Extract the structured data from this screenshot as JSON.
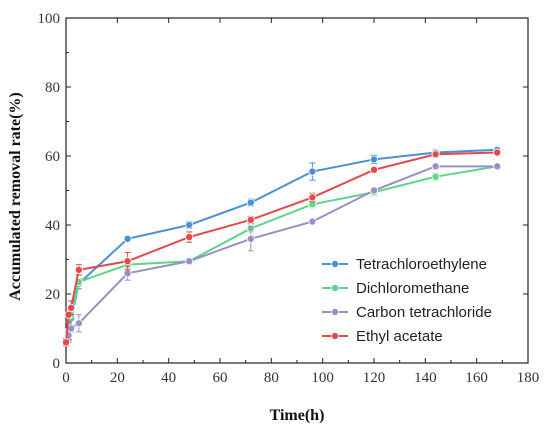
{
  "chart_data": {
    "type": "line",
    "xlabel": "Time(h)",
    "ylabel": "Accumulated removal rate(%)",
    "xlim": [
      0,
      180
    ],
    "ylim": [
      0,
      100
    ],
    "xticks": [
      0,
      20,
      40,
      60,
      80,
      100,
      120,
      140,
      160,
      180
    ],
    "yticks": [
      0,
      20,
      40,
      60,
      80,
      100
    ],
    "grid": false,
    "legend_position": "lower-right",
    "series": [
      {
        "name": "Tetrachloroethylene",
        "color": "#4a90d9",
        "x": [
          0,
          1,
          2,
          5,
          24,
          48,
          72,
          96,
          120,
          144,
          168
        ],
        "y": [
          6,
          7,
          13,
          23,
          36,
          40,
          46.5,
          55.5,
          59,
          61,
          61.8
        ],
        "err": [
          1,
          1,
          2,
          1.5,
          0.8,
          1,
          1,
          2.5,
          1.2,
          0.8,
          0.5
        ]
      },
      {
        "name": "Dichloromethane",
        "color": "#5fd48a",
        "x": [
          0,
          1,
          2,
          5,
          24,
          48,
          72,
          96,
          120,
          144,
          168
        ],
        "y": [
          6,
          9,
          14,
          23.5,
          28.5,
          29.5,
          39,
          46,
          49.5,
          54,
          57
        ],
        "err": [
          1,
          1,
          1.5,
          1,
          1,
          0.8,
          1,
          1,
          1,
          1,
          0.6
        ]
      },
      {
        "name": "Carbon tetrachloride",
        "color": "#9b8fc7",
        "x": [
          0,
          1,
          2,
          5,
          24,
          48,
          72,
          96,
          120,
          144,
          168
        ],
        "y": [
          6,
          8,
          10,
          11.5,
          26,
          29.5,
          36,
          41,
          50,
          57,
          57
        ],
        "err": [
          1,
          1,
          1,
          2.5,
          2,
          0.8,
          3.5,
          0.6,
          0.8,
          0.8,
          0.6
        ]
      },
      {
        "name": "Ethyl acetate",
        "color": "#e24a4a",
        "x": [
          0,
          1,
          2,
          5,
          24,
          48,
          72,
          96,
          120,
          144,
          168
        ],
        "y": [
          6,
          14,
          16,
          27,
          29.5,
          36.5,
          41.5,
          48,
          56,
          60.5,
          61
        ],
        "err": [
          1,
          2,
          2,
          1.5,
          2.5,
          1.5,
          1,
          1.2,
          0.8,
          0.8,
          0.5
        ]
      }
    ]
  }
}
